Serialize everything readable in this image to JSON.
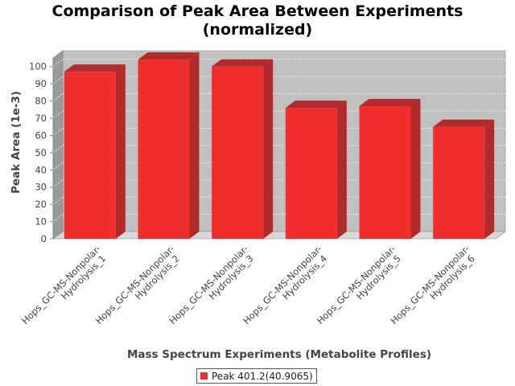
{
  "title_lines": [
    "Comparison of Peak Area Between Experiments",
    "(normalized)"
  ],
  "colors": {
    "plot_back": "#c0c0c0",
    "plot_floor": "#d8d8d8",
    "plot_side": "#9a9a9a",
    "bar_front": "#f02e2e",
    "bar_top": "#b02b2b",
    "bar_side": "#b32a2a",
    "gridline": "#ffffff",
    "axis_line": "#888888"
  },
  "chart_data": {
    "type": "bar",
    "title": "Comparison of Peak Area Between Experiments (normalized)",
    "xlabel": "Mass Spectrum Experiments (Metabolite Profiles)",
    "ylabel": "Peak Area (1e-3)",
    "ylim": [
      0,
      100
    ],
    "yticks": [
      0,
      10,
      20,
      30,
      40,
      50,
      60,
      70,
      80,
      90,
      100
    ],
    "grid": true,
    "legend_position": "bottom",
    "categories": [
      "Hops_GC-MS-Nonpolar-Hydrolysis_1",
      "Hops_GC-MS-Nonpolar-Hydrolysis_2",
      "Hops_GC-MS-Nonpolar-Hydrolysis_3",
      "Hops_GC-MS-Nonpolar-Hydrolysis_4",
      "Hops_GC-MS-Nonpolar-Hydrolysis_5",
      "Hops_GC-MS-Nonpolar-Hydrolysis_6"
    ],
    "category_labels": [
      [
        "Hops_GC-MS-Nonpolar-",
        "Hydrolysis_1"
      ],
      [
        "Hops_GC-MS-Nonpolar-",
        "Hydrolysis_2"
      ],
      [
        "Hops_GC-MS-Nonpolar-",
        "Hydrolysis_3"
      ],
      [
        "Hops_GC-MS-Nonpolar-",
        "Hydrolysis_4"
      ],
      [
        "Hops_GC-MS-Nonpolar-",
        "Hydrolysis_5"
      ],
      [
        "Hops_GC-MS-Nonpolar-",
        "Hydrolysis_6"
      ]
    ],
    "series": [
      {
        "name": "Peak 401.2(40.9065)",
        "values": [
          97,
          104,
          100,
          76,
          77,
          65
        ]
      }
    ]
  }
}
